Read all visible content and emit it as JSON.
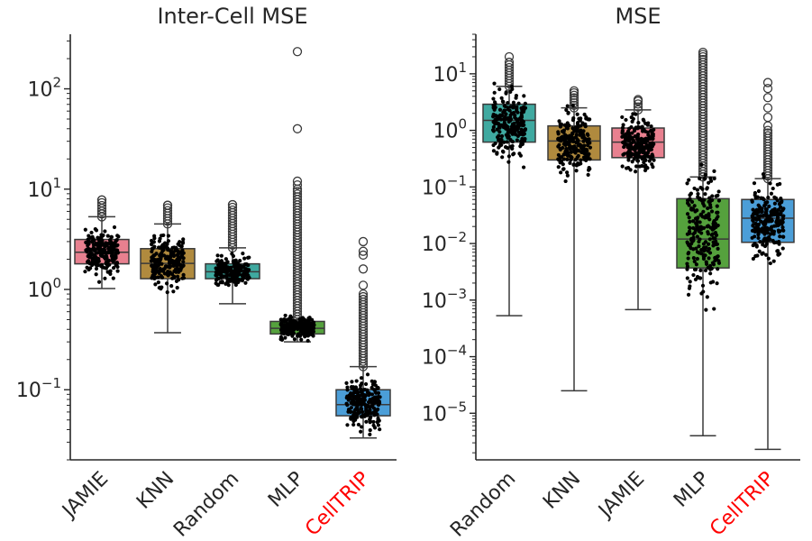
{
  "chart_data": [
    {
      "type": "box",
      "title": "Inter-Cell MSE",
      "xlabel": "",
      "ylabel": "",
      "yscale": "log",
      "ylim": [
        0.02,
        350
      ],
      "yticks": [
        {
          "value": 0.1,
          "base": "10",
          "exp": "−1"
        },
        {
          "value": 1,
          "base": "10",
          "exp": "0"
        },
        {
          "value": 10,
          "base": "10",
          "exp": "1"
        },
        {
          "value": 100,
          "base": "10",
          "exp": "2"
        }
      ],
      "categories": [
        "JAMIE",
        "KNN",
        "Random",
        "MLP",
        "CellTRIP"
      ],
      "highlight": "CellTRIP",
      "boxes": [
        {
          "label": "JAMIE",
          "color": "#e8808f",
          "whisker_low": 1.02,
          "q1": 1.8,
          "median": 2.35,
          "q3": 3.15,
          "whisker_high": 5.3,
          "outliers": [
            7.8
          ],
          "outlier_range": [
            5.3,
            7.8
          ]
        },
        {
          "label": "KNN",
          "color": "#b08a3e",
          "whisker_low": 0.37,
          "q1": 1.28,
          "median": 1.82,
          "q3": 2.55,
          "whisker_high": 4.5,
          "outliers": [
            6.9
          ],
          "outlier_range": [
            4.5,
            6.9
          ]
        },
        {
          "label": "Random",
          "color": "#3fa9a0",
          "whisker_low": 0.72,
          "q1": 1.28,
          "median": 1.5,
          "q3": 1.8,
          "whisker_high": 2.6,
          "outliers": [
            7.0
          ],
          "outlier_range": [
            2.6,
            7.0
          ]
        },
        {
          "label": "MLP",
          "color": "#55a13d",
          "whisker_low": 0.3,
          "q1": 0.36,
          "median": 0.41,
          "q3": 0.48,
          "whisker_high": 0.5,
          "outliers": [
            40,
            235,
            12,
            11,
            10
          ],
          "outlier_range": [
            0.5,
            9.5
          ]
        },
        {
          "label": "CellTRIP",
          "color": "#4b9ed8",
          "whisker_low": 0.033,
          "q1": 0.055,
          "median": 0.071,
          "q3": 0.1,
          "whisker_high": 0.17,
          "outliers": [
            3.0,
            2.4,
            2.2,
            1.6,
            1.1
          ],
          "outlier_range": [
            0.17,
            0.9
          ]
        }
      ]
    },
    {
      "type": "box",
      "title": "MSE",
      "xlabel": "",
      "ylabel": "",
      "yscale": "log",
      "ylim": [
        1.5e-06,
        50
      ],
      "yticks": [
        {
          "value": 1e-05,
          "base": "10",
          "exp": "−5"
        },
        {
          "value": 0.0001,
          "base": "10",
          "exp": "−4"
        },
        {
          "value": 0.001,
          "base": "10",
          "exp": "−3"
        },
        {
          "value": 0.01,
          "base": "10",
          "exp": "−2"
        },
        {
          "value": 0.1,
          "base": "10",
          "exp": "−1"
        },
        {
          "value": 1,
          "base": "10",
          "exp": "0"
        },
        {
          "value": 10,
          "base": "10",
          "exp": "1"
        }
      ],
      "categories": [
        "Random",
        "KNN",
        "JAMIE",
        "MLP",
        "CellTRIP"
      ],
      "highlight": "CellTRIP",
      "boxes": [
        {
          "label": "Random",
          "color": "#3fa9a0",
          "whisker_low": 0.00053,
          "q1": 0.62,
          "median": 1.5,
          "q3": 2.9,
          "whisker_high": 6.0,
          "outliers": [
            20
          ],
          "outlier_range": [
            6.0,
            16
          ]
        },
        {
          "label": "KNN",
          "color": "#b08a3e",
          "whisker_low": 2.5e-05,
          "q1": 0.3,
          "median": 0.65,
          "q3": 1.2,
          "whisker_high": 2.5,
          "outliers": [
            5.0
          ],
          "outlier_range": [
            2.5,
            4.6
          ]
        },
        {
          "label": "JAMIE",
          "color": "#e8808f",
          "whisker_low": 0.00068,
          "q1": 0.33,
          "median": 0.62,
          "q3": 1.1,
          "whisker_high": 2.3,
          "outliers": [
            3.5
          ],
          "outlier_range": [
            2.3,
            3.3
          ]
        },
        {
          "label": "MLP",
          "color": "#55a13d",
          "whisker_low": 4e-06,
          "q1": 0.0037,
          "median": 0.012,
          "q3": 0.062,
          "whisker_high": 0.15,
          "outliers": [
            24,
            22
          ],
          "outlier_range": [
            0.15,
            20
          ]
        },
        {
          "label": "CellTRIP",
          "color": "#4b9ed8",
          "whisker_low": 2.3e-06,
          "q1": 0.0105,
          "median": 0.028,
          "q3": 0.06,
          "whisker_high": 0.14,
          "outliers": [
            7.0,
            5.5,
            3.8,
            2.5,
            1.7,
            1.2
          ],
          "outlier_range": [
            0.14,
            1.0
          ]
        }
      ]
    }
  ]
}
